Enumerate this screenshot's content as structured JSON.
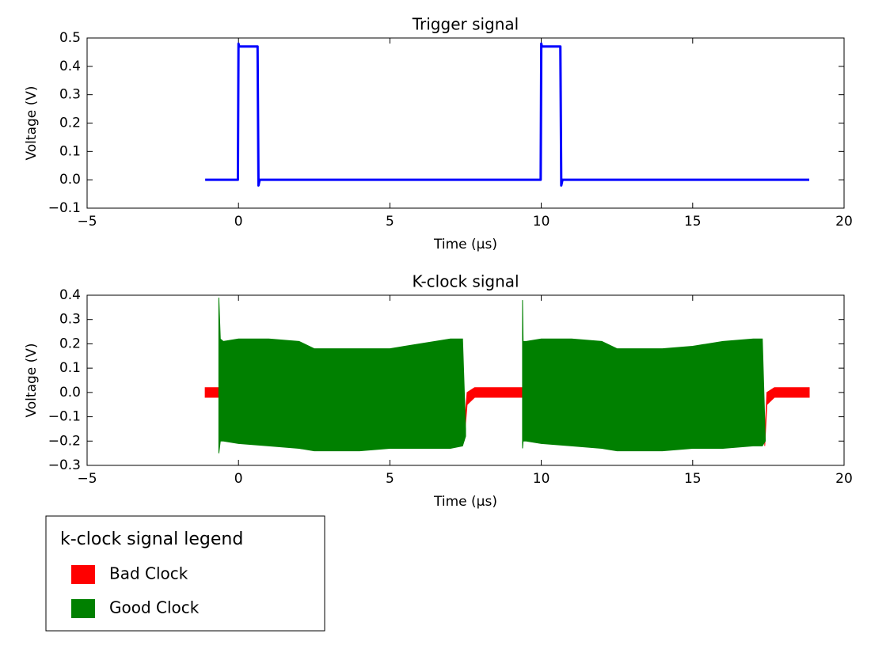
{
  "chart_data": [
    {
      "type": "line",
      "title": "Trigger signal",
      "xlabel": "Time (μs)",
      "ylabel": "Voltage (V)",
      "xlim": [
        -5,
        20
      ],
      "xticks": [
        {
          "value": -5,
          "label": "−5"
        },
        0,
        5,
        10,
        15,
        20
      ],
      "ylim": [
        -0.1,
        0.5
      ],
      "yticks": [
        {
          "value": -0.1,
          "label": "−0.1"
        },
        {
          "value": 0,
          "label": "0.0"
        },
        0.1,
        0.2,
        0.3,
        0.4,
        0.5
      ],
      "series": [
        {
          "color": "#0000ff",
          "x": [
            -1.1,
            -0.02,
            0,
            0.02,
            0.63,
            0.66,
            0.7,
            9.98,
            10.0,
            10.02,
            10.63,
            10.66,
            10.7,
            18.85
          ],
          "values": [
            0,
            0,
            0.48,
            0.47,
            0.47,
            -0.02,
            0,
            0,
            0.48,
            0.47,
            0.47,
            -0.02,
            0,
            0
          ]
        }
      ]
    },
    {
      "type": "band",
      "title": "K-clock signal",
      "xlabel": "Time (μs)",
      "ylabel": "Voltage (V)",
      "xlim": [
        -5,
        20
      ],
      "xticks": [
        {
          "value": -5,
          "label": "−5"
        },
        0,
        5,
        10,
        15,
        20
      ],
      "ylim": [
        -0.3,
        0.4
      ],
      "yticks": [
        {
          "value": -0.3,
          "label": "−0.3"
        },
        {
          "value": -0.2,
          "label": "−0.2"
        },
        {
          "value": -0.1,
          "label": "−0.1"
        },
        {
          "value": 0,
          "label": "0.0"
        },
        0.1,
        0.2,
        0.3,
        0.4
      ],
      "legend_title": "k-clock signal legend",
      "series": [
        {
          "name": "Bad Clock",
          "color": "#ff0000",
          "x": [
            -1.1,
            -0.62,
            3,
            7.45,
            7.55,
            7.8,
            9.4,
            13,
            17.38,
            17.45,
            17.7,
            18.85
          ],
          "upper": [
            0.02,
            0.02,
            null,
            -0.15,
            0.0,
            0.02,
            0.02,
            null,
            -0.2,
            0.0,
            0.02,
            0.02
          ],
          "lower": [
            -0.02,
            -0.02,
            null,
            -0.2,
            -0.05,
            -0.02,
            -0.02,
            null,
            -0.22,
            -0.05,
            -0.02,
            -0.02
          ]
        },
        {
          "name": "Good Clock",
          "color": "#008000",
          "x": [
            -0.65,
            -0.6,
            -0.5,
            0,
            1,
            2,
            2.5,
            3,
            4,
            5,
            6,
            7,
            7.4,
            7.5,
            8,
            9.38,
            9.4,
            9.5,
            10,
            11,
            12,
            12.5,
            13,
            14,
            15,
            16,
            17,
            17.3,
            17.4
          ],
          "upper": [
            0.39,
            0.22,
            0.21,
            0.22,
            0.22,
            0.21,
            0.18,
            0.18,
            0.18,
            0.18,
            0.2,
            0.22,
            0.22,
            -0.15,
            null,
            0.38,
            0.21,
            0.21,
            0.22,
            0.22,
            0.21,
            0.18,
            0.18,
            0.18,
            0.19,
            0.21,
            0.22,
            0.22,
            -0.2
          ],
          "lower": [
            -0.25,
            -0.2,
            -0.2,
            -0.21,
            -0.22,
            -0.23,
            -0.24,
            -0.24,
            -0.24,
            -0.23,
            -0.23,
            -0.23,
            -0.22,
            -0.18,
            null,
            -0.23,
            -0.2,
            -0.2,
            -0.21,
            -0.22,
            -0.23,
            -0.24,
            -0.24,
            -0.24,
            -0.23,
            -0.23,
            -0.22,
            -0.22,
            -0.2
          ]
        }
      ]
    }
  ]
}
